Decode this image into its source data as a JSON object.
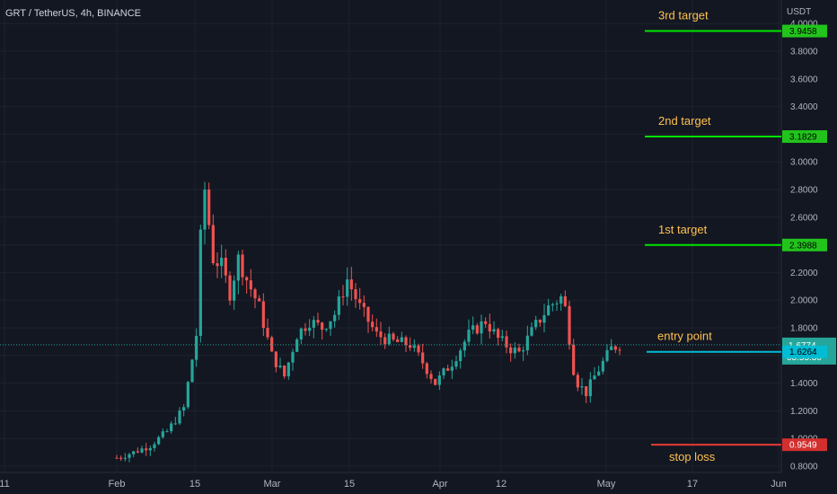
{
  "chart_data": {
    "type": "candlestick",
    "title": "GRT / TetherUS, 4h, BINANCE",
    "currency_label": "USDT",
    "y_ticks": [
      "4.0000",
      "3.8000",
      "3.6000",
      "3.4000",
      "3.2000",
      "3.0000",
      "2.8000",
      "2.6000",
      "2.4000",
      "2.2000",
      "2.0000",
      "1.8000",
      "1.6000",
      "1.4000",
      "1.2000",
      "1.0000",
      "0.8000"
    ],
    "x_ticks": [
      "11",
      "Feb",
      "15",
      "Mar",
      "15",
      "Apr",
      "12",
      "May",
      "17",
      "Jun"
    ],
    "ylim": [
      0.76,
      4.11
    ],
    "grid": true,
    "close_profile": [
      [
        0,
        0.86
      ],
      [
        4,
        0.9
      ],
      [
        8,
        0.95
      ],
      [
        12,
        1.05
      ],
      [
        16,
        1.22
      ],
      [
        19,
        1.75
      ],
      [
        20,
        2.45
      ],
      [
        21,
        2.8
      ],
      [
        22,
        2.55
      ],
      [
        23,
        2.3
      ],
      [
        25,
        2.25
      ],
      [
        27,
        2.05
      ],
      [
        29,
        2.3
      ],
      [
        31,
        2.15
      ],
      [
        34,
        1.95
      ],
      [
        37,
        1.6
      ],
      [
        40,
        1.45
      ],
      [
        43,
        1.75
      ],
      [
        46,
        1.85
      ],
      [
        49,
        1.8
      ],
      [
        52,
        1.9
      ],
      [
        55,
        2.15
      ],
      [
        58,
        1.95
      ],
      [
        62,
        1.75
      ],
      [
        66,
        1.7
      ],
      [
        70,
        1.68
      ],
      [
        73,
        1.55
      ],
      [
        76,
        1.4
      ],
      [
        80,
        1.55
      ],
      [
        84,
        1.75
      ],
      [
        88,
        1.85
      ],
      [
        91,
        1.72
      ],
      [
        94,
        1.65
      ],
      [
        96,
        1.62
      ],
      [
        98,
        1.72
      ],
      [
        100,
        1.82
      ],
      [
        103,
        1.95
      ],
      [
        106,
        2.02
      ],
      [
        107.5,
        1.9
      ],
      [
        108.5,
        1.55
      ],
      [
        110,
        1.4
      ],
      [
        112,
        1.33
      ],
      [
        114,
        1.45
      ],
      [
        116,
        1.55
      ],
      [
        118,
        1.65
      ],
      [
        120,
        1.68
      ]
    ],
    "price_label": {
      "value": "1.6774",
      "countdown": "03:55:30",
      "color": "#26a69a"
    },
    "annotations": [
      {
        "text": "3rd target",
        "price": 3.9458,
        "label": "3.9458",
        "line_color": "#00e600",
        "text_color": "#ffc14d"
      },
      {
        "text": "2nd target",
        "price": 3.1829,
        "label": "3.1829",
        "line_color": "#00e600",
        "text_color": "#ffc14d"
      },
      {
        "text": "1st target",
        "price": 2.3988,
        "label": "2.3988",
        "line_color": "#00e600",
        "text_color": "#ffc14d"
      },
      {
        "text": "entry point",
        "price": 1.6264,
        "label": "1.6264",
        "line_color": "#00bcd4",
        "text_color": "#ffc14d"
      },
      {
        "text": "stop loss",
        "price": 0.9549,
        "label": "0.9549",
        "line_color": "#e53935",
        "text_color": "#ffc14d"
      }
    ],
    "colors": {
      "up": "#26a69a",
      "down": "#ef5350",
      "target": "#00e600",
      "entry": "#00bcd4",
      "stop": "#e53935",
      "label_text": "#ffc14d",
      "background": "#131722"
    }
  }
}
